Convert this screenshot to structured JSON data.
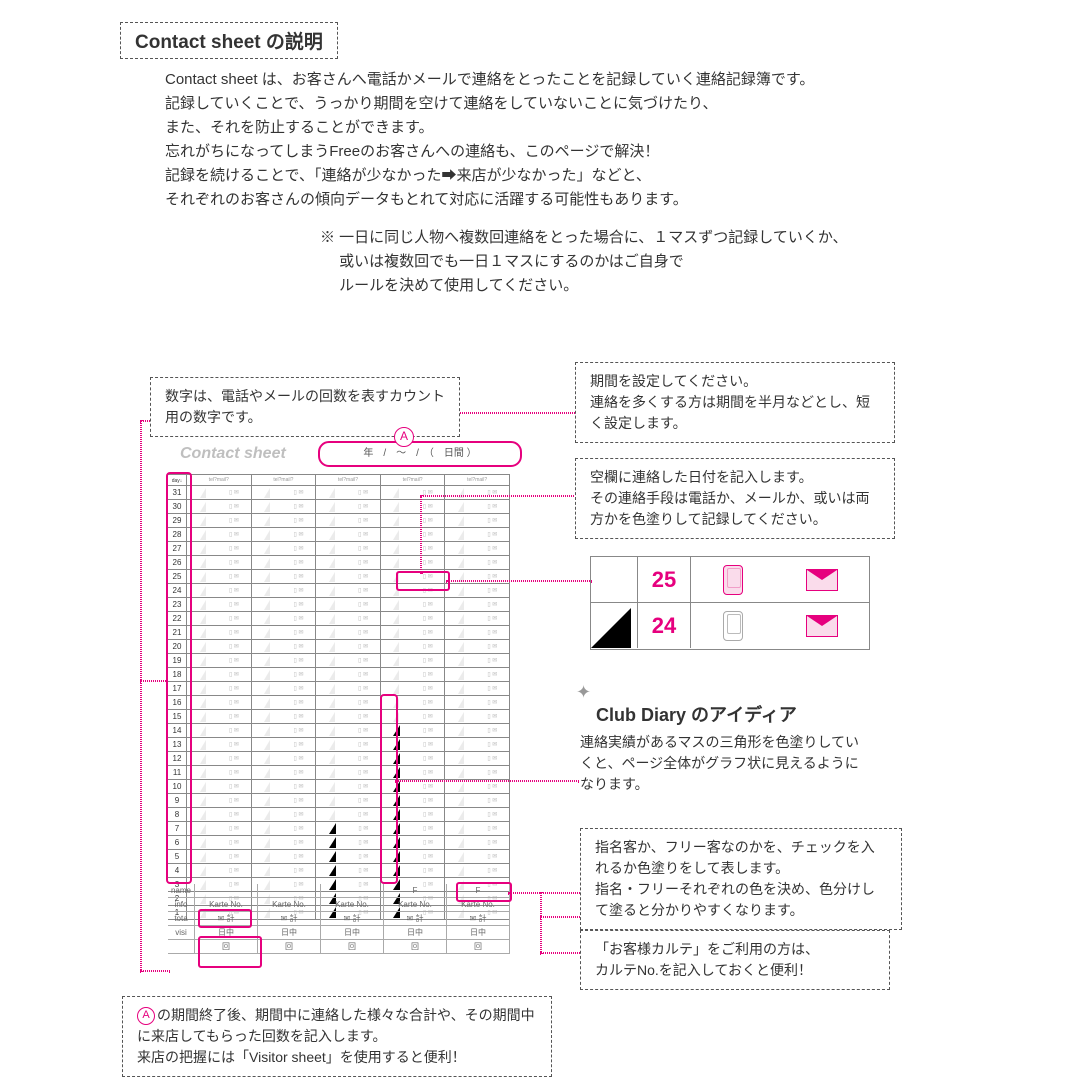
{
  "title": {
    "en": "Contact sheet",
    "jp": "の説明"
  },
  "intro": [
    "Contact sheet は、お客さんへ電話かメールで連絡をとったことを記録していく連絡記録簿です。",
    "記録していくことで、うっかり期間を空けて連絡をしていないことに気づけたり、",
    "また、それを防止することができます。",
    "忘れがちになってしまうFreeのお客さんへの連絡も、このページで解決！",
    "記録を続けることで、「連絡が少なかった➡来店が少なかった」などと、",
    "それぞれのお客さんの傾向データもとれて対応に活躍する可能性もあります。"
  ],
  "sub_note": [
    "※ 一日に同じ人物へ複数回連絡をとった場合に、１マスずつ記録していくか、",
    "　 或いは複数回でも一日１マスにするのかはご自身で",
    "　 ルールを決めて使用してください。"
  ],
  "sheet": {
    "logo_text": "Contact sheet",
    "period_label": "年　/　～　/　（　日間 ）",
    "circle_label": "A",
    "columns": 5,
    "col_headers": [
      "tel?mail?",
      "tel?mail?",
      "tel?mail?",
      "tel?mail?",
      "tel?mail?"
    ],
    "rows": [
      31,
      30,
      29,
      28,
      27,
      26,
      25,
      24,
      23,
      22,
      21,
      20,
      19,
      18,
      17,
      16,
      15,
      14,
      13,
      12,
      11,
      10,
      9,
      8,
      7,
      6,
      5,
      4,
      3,
      2,
      1
    ],
    "filled_triangles": {
      "col3": [
        7,
        6,
        5,
        4,
        3,
        2,
        1
      ],
      "col4": [
        14,
        13,
        12,
        11,
        10,
        9,
        8,
        7,
        6,
        5,
        4,
        3,
        2,
        1
      ]
    },
    "footer_labels": [
      "name",
      "info",
      "tota",
      "visi"
    ],
    "karte_label": "Karte No.",
    "visit_labels": [
      "日中",
      "回",
      "回"
    ],
    "mail_kei": "✉ 計",
    "tel_kei": "☎ 計",
    "f_label": "F"
  },
  "zoom": {
    "row1": {
      "num": "25",
      "num_color": "#e6007e",
      "tri_filled": false,
      "phone_pink": true,
      "mail_pink": true
    },
    "row2": {
      "num": "24",
      "num_color": "#e6007e",
      "tri_filled": true,
      "phone_pink": false,
      "mail_pink": true
    }
  },
  "callouts": {
    "numbers": "数字は、電話やメールの回数を表すカウント用の数字です。",
    "period": "期間を設定してください。\n連絡を多くする方は期間を半月などとし、短く設定します。",
    "daycell": "空欄に連絡した日付を記入します。\nその連絡手段は電話か、メールか、或いは両方かを色塗りして記録してください。",
    "idea_head_en": "Club Diary",
    "idea_head_jp": " のアイディア",
    "idea": "連絡実績があるマスの三角形を色塗りしていくと、ページ全体がグラフ状に見えるようになります。",
    "free": "指名客か、フリー客なのかを、チェックを入れるか色塗りをして表します。\n指名・フリーそれぞれの色を決め、色分けして塗ると分かりやすくなります。",
    "karte": "「お客様カルテ」をご利用の方は、\nカルテNo.を記入しておくと便利！",
    "total_pre": "",
    "total": "の期間終了後、期間中に連絡した様々な合計や、その期間中に来店してもらった回数を記入します。\n来店の把握には「Visitor sheet」を使用すると便利！"
  },
  "colors": {
    "accent": "#e6007e",
    "dash": "#555555",
    "grey": "#bfbfbf"
  }
}
